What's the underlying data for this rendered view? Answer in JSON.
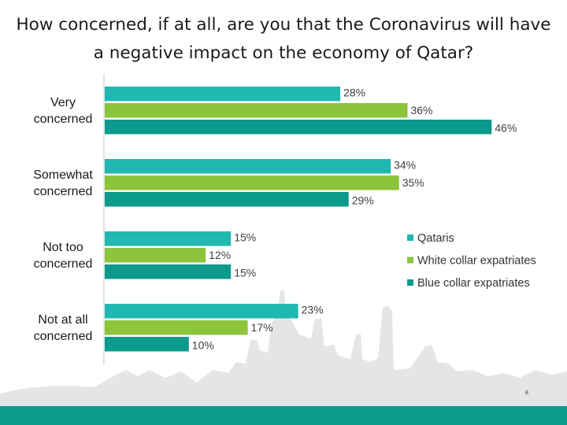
{
  "chart_data": {
    "type": "bar",
    "orientation": "horizontal",
    "title": "How concerned, if at all, are you that the Coronavirus will have a negative impact on the economy of Qatar?",
    "categories": [
      "Very concerned",
      "Somewhat concerned",
      "Not too concerned",
      "Not at all concerned"
    ],
    "series": [
      {
        "name": "Qataris",
        "values": [
          28,
          34,
          15,
          23
        ],
        "color": "#20b8b0"
      },
      {
        "name": "White collar expatriates",
        "values": [
          36,
          35,
          12,
          17
        ],
        "color": "#8cc43c"
      },
      {
        "name": "Blue collar expatriates",
        "values": [
          46,
          29,
          15,
          10
        ],
        "color": "#0b9a8c"
      }
    ],
    "value_suffix": "%",
    "xlim": [
      0,
      50
    ],
    "legend_position": "right",
    "grid": false,
    "xlabel": "",
    "ylabel": ""
  },
  "footer": {
    "page_number": "8",
    "band_color": "#0b9a8c"
  }
}
